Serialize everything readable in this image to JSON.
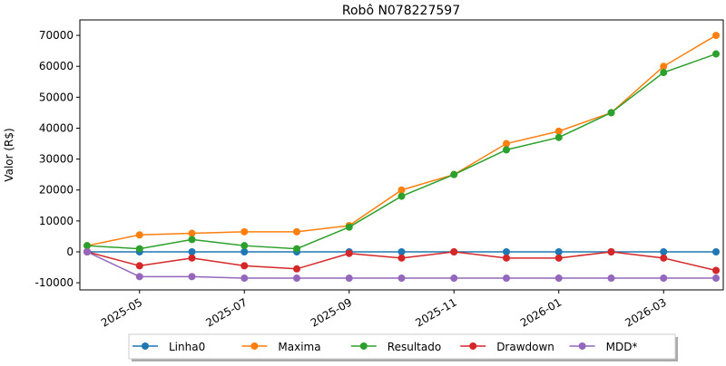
{
  "chart_data": {
    "type": "line",
    "title": "Robô N078227597",
    "y_label": "Valor (R$)",
    "x": [
      "2025-04",
      "2025-05",
      "2025-06",
      "2025-07",
      "2025-08",
      "2025-09",
      "2025-10",
      "2025-11",
      "2025-12",
      "2026-01",
      "2026-02",
      "2026-03",
      "2026-04"
    ],
    "series": [
      {
        "name": "Linha0",
        "color": "#1f77b4",
        "values": [
          0,
          0,
          0,
          0,
          0,
          0,
          0,
          0,
          0,
          0,
          0,
          0,
          0
        ]
      },
      {
        "name": "Maxima",
        "color": "#ff7f0e",
        "values": [
          2000,
          5500,
          6000,
          6500,
          6500,
          8500,
          20000,
          25000,
          35000,
          39000,
          45000,
          60000,
          70000
        ]
      },
      {
        "name": "Resultado",
        "color": "#2ca02c",
        "values": [
          2000,
          1000,
          4000,
          2000,
          1000,
          8000,
          18000,
          25000,
          33000,
          37000,
          45000,
          58000,
          64000
        ]
      },
      {
        "name": "Drawdown",
        "color": "#d62728",
        "values": [
          0,
          -4500,
          -2000,
          -4500,
          -5500,
          -500,
          -2000,
          0,
          -2000,
          -2000,
          0,
          -2000,
          -6000
        ]
      },
      {
        "name": "MDD*",
        "color": "#9467bd",
        "values": [
          0,
          -8000,
          -8000,
          -8500,
          -8500,
          -8500,
          -8500,
          -8500,
          -8500,
          -8500,
          -8500,
          -8500,
          -8500
        ]
      }
    ],
    "xlim": [
      "2025-04",
      "2026-04"
    ],
    "xticks": [
      "2025-05",
      "2025-07",
      "2025-09",
      "2025-11",
      "2026-01",
      "2026-03"
    ],
    "ylim": [
      -12300,
      75000
    ],
    "yticks": [
      -10000,
      0,
      10000,
      20000,
      30000,
      40000,
      50000,
      60000,
      70000
    ],
    "legend": "bottom"
  }
}
